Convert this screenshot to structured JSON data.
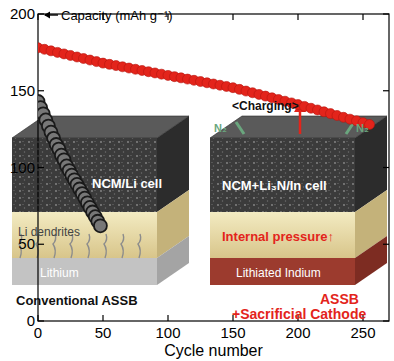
{
  "chart_data": {
    "type": "line",
    "y_label": "Capacity (mAh g⁻¹)",
    "x_label": "Cycle number",
    "xlim": [
      0,
      270
    ],
    "xticks": [
      0,
      50,
      100,
      150,
      200,
      250
    ],
    "ylim": [
      0,
      200
    ],
    "yticks": [
      0,
      50,
      100,
      150,
      200
    ],
    "grid": false,
    "series": [
      {
        "name": "NCM+Li₃N/In cell",
        "color": "#e3241b",
        "marker": "circle",
        "line_style": "none",
        "x": [
          0,
          5,
          10,
          15,
          20,
          25,
          30,
          35,
          40,
          45,
          50,
          55,
          60,
          65,
          70,
          75,
          80,
          85,
          90,
          95,
          100,
          105,
          110,
          115,
          120,
          125,
          130,
          135,
          140,
          145,
          150,
          155,
          160,
          165,
          170,
          175,
          180,
          185,
          190,
          195,
          200,
          205,
          210,
          215,
          220,
          225,
          230,
          235,
          240,
          245,
          250,
          255
        ],
        "values": [
          178,
          177,
          176,
          175,
          174,
          173,
          172,
          171,
          170,
          169,
          168,
          167.2,
          166.4,
          165.6,
          164.8,
          164,
          163.2,
          162.4,
          161.6,
          160.8,
          160,
          159.2,
          158.4,
          157.6,
          156.8,
          156,
          155.2,
          154.4,
          153.6,
          152.8,
          152,
          150.9,
          149.8,
          148.7,
          147.6,
          146.5,
          145.4,
          144.3,
          143.2,
          142.1,
          141,
          139.8,
          138.6,
          137.5,
          136.3,
          135.1,
          133.9,
          132.7,
          131.5,
          130.4,
          129.2,
          128
        ]
      },
      {
        "name": "NCM/Li cell",
        "color": "#1a1a1a",
        "marker": "circle",
        "line_style": "none",
        "x": [
          0,
          2,
          4,
          6,
          8,
          10,
          12,
          14,
          16,
          18,
          20,
          22,
          24,
          26,
          28,
          30,
          32,
          34,
          36,
          38,
          40,
          42,
          44,
          46,
          48
        ],
        "values": [
          143,
          139,
          135,
          131,
          127,
          123,
          119,
          115,
          112,
          108,
          105,
          101,
          98,
          95,
          92,
          89,
          86,
          83,
          80,
          77,
          74,
          71,
          68,
          65,
          62
        ]
      }
    ],
    "annotations": [
      "Li dendrites",
      "Lithium",
      "Conventional ASSB",
      "<Charging>",
      "N₂",
      "Internal pressure↑",
      "Lithiated Indium",
      "ASSB",
      "+Sacrificial Cathode"
    ]
  }
}
